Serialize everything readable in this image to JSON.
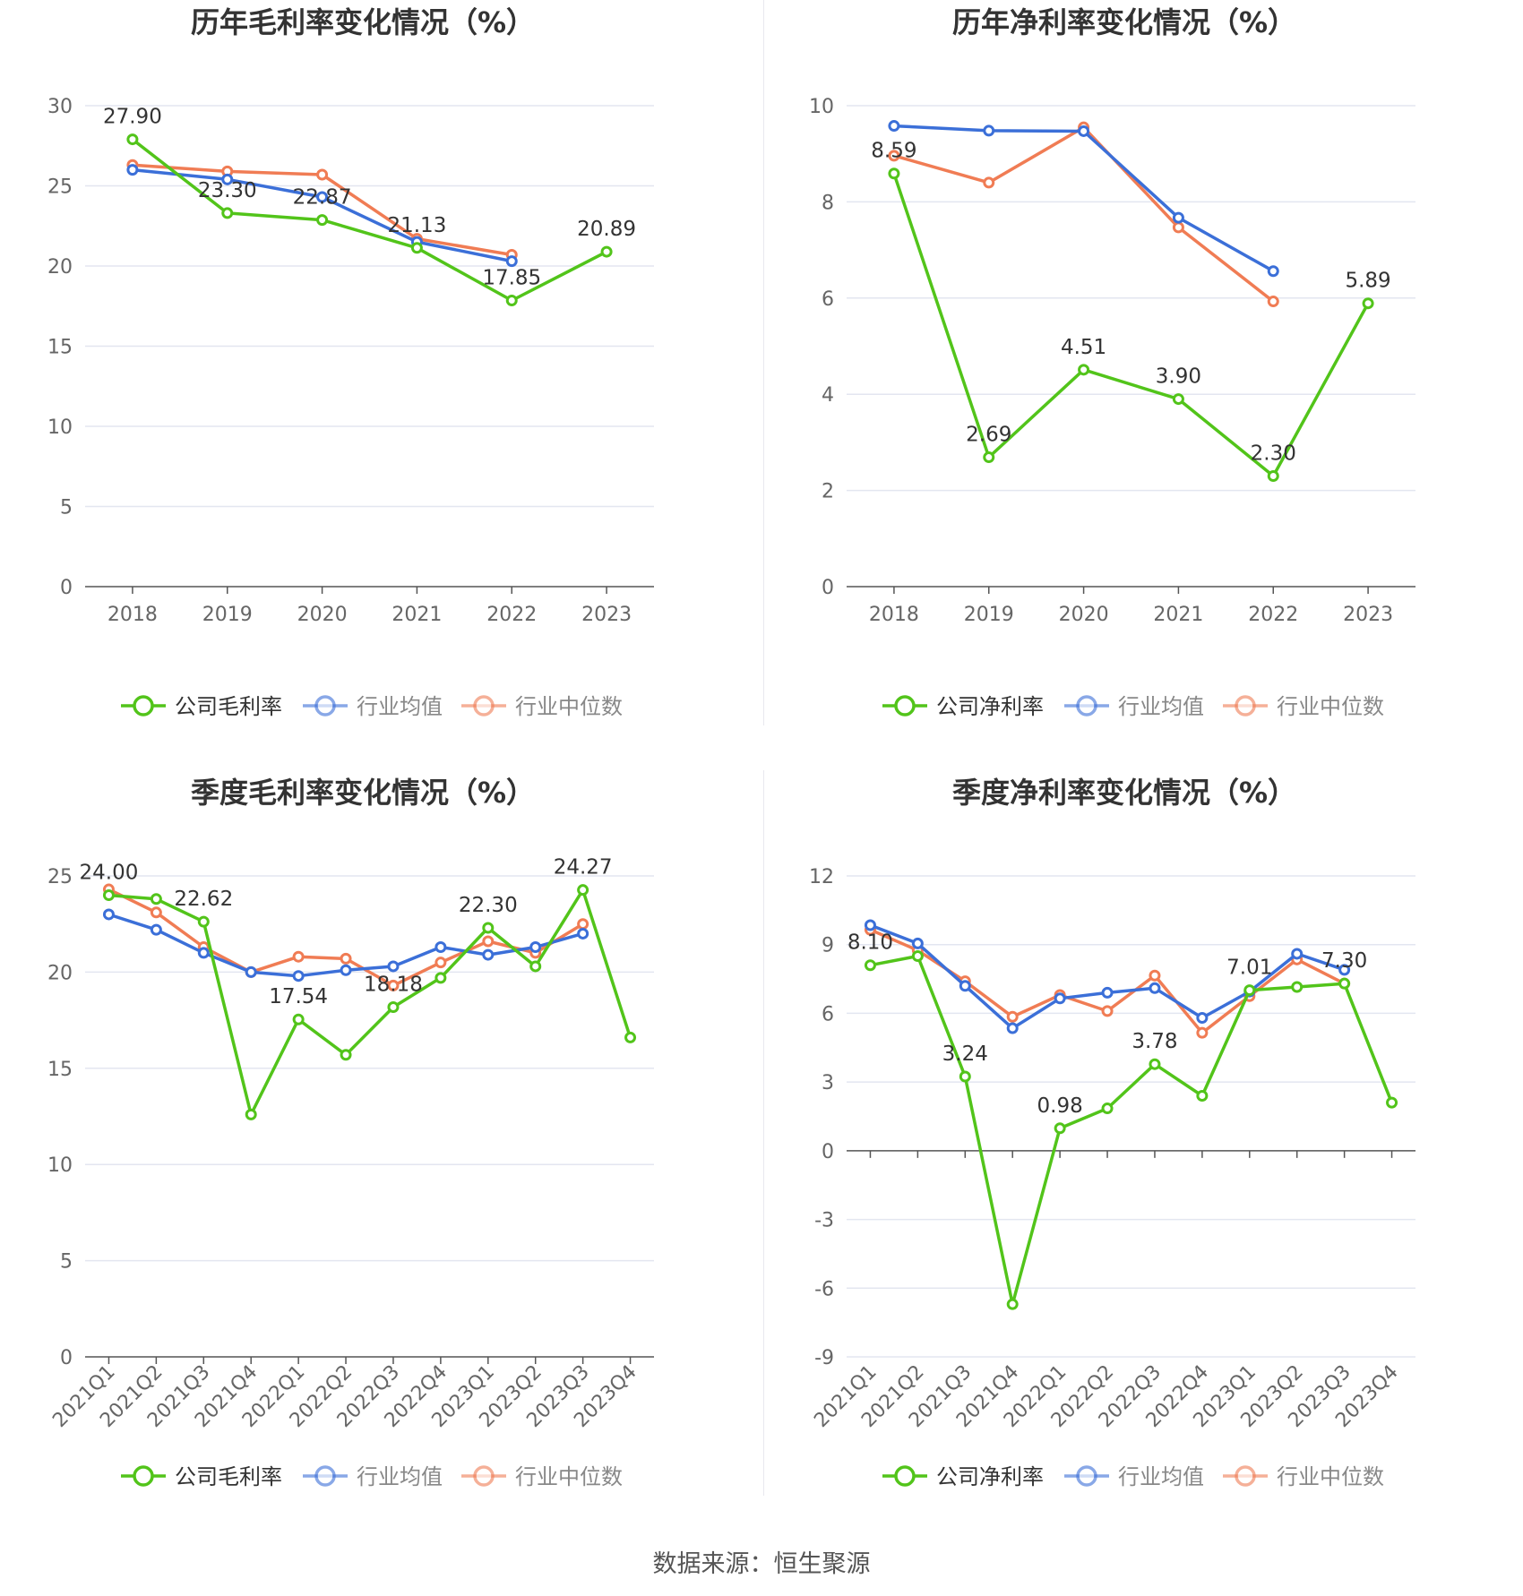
{
  "source": "数据来源：恒生聚源",
  "colors": {
    "company": "#52c41a",
    "avg": "#3b6fd8",
    "median": "#f07c54",
    "grid": "#e3e6f0",
    "axis": "#555555",
    "text": "#333333",
    "tick": "#666666"
  },
  "chart_data": [
    {
      "type": "line",
      "title": "历年毛利率变化情况（%）",
      "categories": [
        "2018",
        "2019",
        "2020",
        "2021",
        "2022",
        "2023"
      ],
      "ylim": [
        0,
        30
      ],
      "yticks": [
        0,
        5,
        10,
        15,
        20,
        25,
        30
      ],
      "legend_position": "bottom",
      "series": [
        {
          "name": "公司毛利率",
          "role": "company",
          "values": [
            27.9,
            23.3,
            22.87,
            21.13,
            17.85,
            20.89
          ],
          "labels": [
            "27.90",
            "23.30",
            "22.87",
            "21.13",
            "17.85",
            "20.89"
          ]
        },
        {
          "name": "行业均值",
          "role": "avg",
          "values": [
            26.0,
            25.4,
            24.3,
            21.5,
            20.3,
            null
          ]
        },
        {
          "name": "行业中位数",
          "role": "median",
          "values": [
            26.3,
            25.9,
            25.7,
            21.7,
            20.7,
            null
          ]
        }
      ]
    },
    {
      "type": "line",
      "title": "历年净利率变化情况（%）",
      "categories": [
        "2018",
        "2019",
        "2020",
        "2021",
        "2022",
        "2023"
      ],
      "ylim": [
        0,
        10
      ],
      "yticks": [
        0,
        2,
        4,
        6,
        8,
        10
      ],
      "legend_position": "bottom",
      "series": [
        {
          "name": "公司净利率",
          "role": "company",
          "values": [
            8.59,
            2.69,
            4.51,
            3.9,
            2.3,
            5.89
          ],
          "labels": [
            "8.59",
            "2.69",
            "4.51",
            "3.90",
            "2.30",
            "5.89"
          ]
        },
        {
          "name": "行业均值",
          "role": "avg",
          "values": [
            9.58,
            9.48,
            9.47,
            7.67,
            6.56,
            null
          ]
        },
        {
          "name": "行业中位数",
          "role": "median",
          "values": [
            8.96,
            8.4,
            9.55,
            7.47,
            5.93,
            null
          ]
        }
      ]
    },
    {
      "type": "line",
      "title": "季度毛利率变化情况（%）",
      "categories": [
        "2021Q1",
        "2021Q2",
        "2021Q3",
        "2021Q4",
        "2022Q1",
        "2022Q2",
        "2022Q3",
        "2022Q4",
        "2023Q1",
        "2023Q2",
        "2023Q3",
        "2023Q4"
      ],
      "ylim": [
        0,
        25
      ],
      "yticks": [
        0,
        5,
        10,
        15,
        20,
        25
      ],
      "legend_position": "bottom",
      "series": [
        {
          "name": "公司毛利率",
          "role": "company",
          "values": [
            24.0,
            23.8,
            22.62,
            12.6,
            17.54,
            15.7,
            18.18,
            19.7,
            22.3,
            20.3,
            24.27,
            16.6
          ],
          "labels": [
            "24.00",
            "",
            "22.62",
            "",
            "17.54",
            "",
            "18.18",
            "",
            "22.30",
            "",
            "24.27",
            ""
          ]
        },
        {
          "name": "行业均值",
          "role": "avg",
          "values": [
            23.0,
            22.2,
            21.0,
            20.0,
            19.8,
            20.1,
            20.3,
            21.3,
            20.9,
            21.3,
            22.0,
            null
          ]
        },
        {
          "name": "行业中位数",
          "role": "median",
          "values": [
            24.3,
            23.1,
            21.3,
            20.0,
            20.8,
            20.7,
            19.3,
            20.5,
            21.6,
            21.0,
            22.5,
            null
          ]
        }
      ]
    },
    {
      "type": "line",
      "title": "季度净利率变化情况（%）",
      "categories": [
        "2021Q1",
        "2021Q2",
        "2021Q3",
        "2021Q4",
        "2022Q1",
        "2022Q2",
        "2022Q3",
        "2022Q4",
        "2023Q1",
        "2023Q2",
        "2023Q3",
        "2023Q4"
      ],
      "ylim": [
        -9,
        12
      ],
      "yticks": [
        -9,
        -6,
        -3,
        0,
        3,
        6,
        9,
        12
      ],
      "legend_position": "bottom",
      "series": [
        {
          "name": "公司净利率",
          "role": "company",
          "values": [
            8.1,
            8.5,
            3.24,
            -6.7,
            0.98,
            1.85,
            3.78,
            2.4,
            7.01,
            7.15,
            7.3,
            2.1
          ],
          "labels": [
            "8.10",
            "",
            "3.24",
            "",
            "0.98",
            "",
            "3.78",
            "",
            "7.01",
            "",
            "7.30",
            ""
          ]
        },
        {
          "name": "行业均值",
          "role": "avg",
          "values": [
            9.85,
            9.05,
            7.2,
            5.35,
            6.65,
            6.9,
            7.1,
            5.8,
            6.95,
            8.6,
            7.9,
            null
          ]
        },
        {
          "name": "行业中位数",
          "role": "median",
          "values": [
            9.65,
            8.75,
            7.4,
            5.85,
            6.8,
            6.1,
            7.65,
            5.15,
            6.75,
            8.35,
            7.3,
            null
          ]
        }
      ]
    }
  ]
}
